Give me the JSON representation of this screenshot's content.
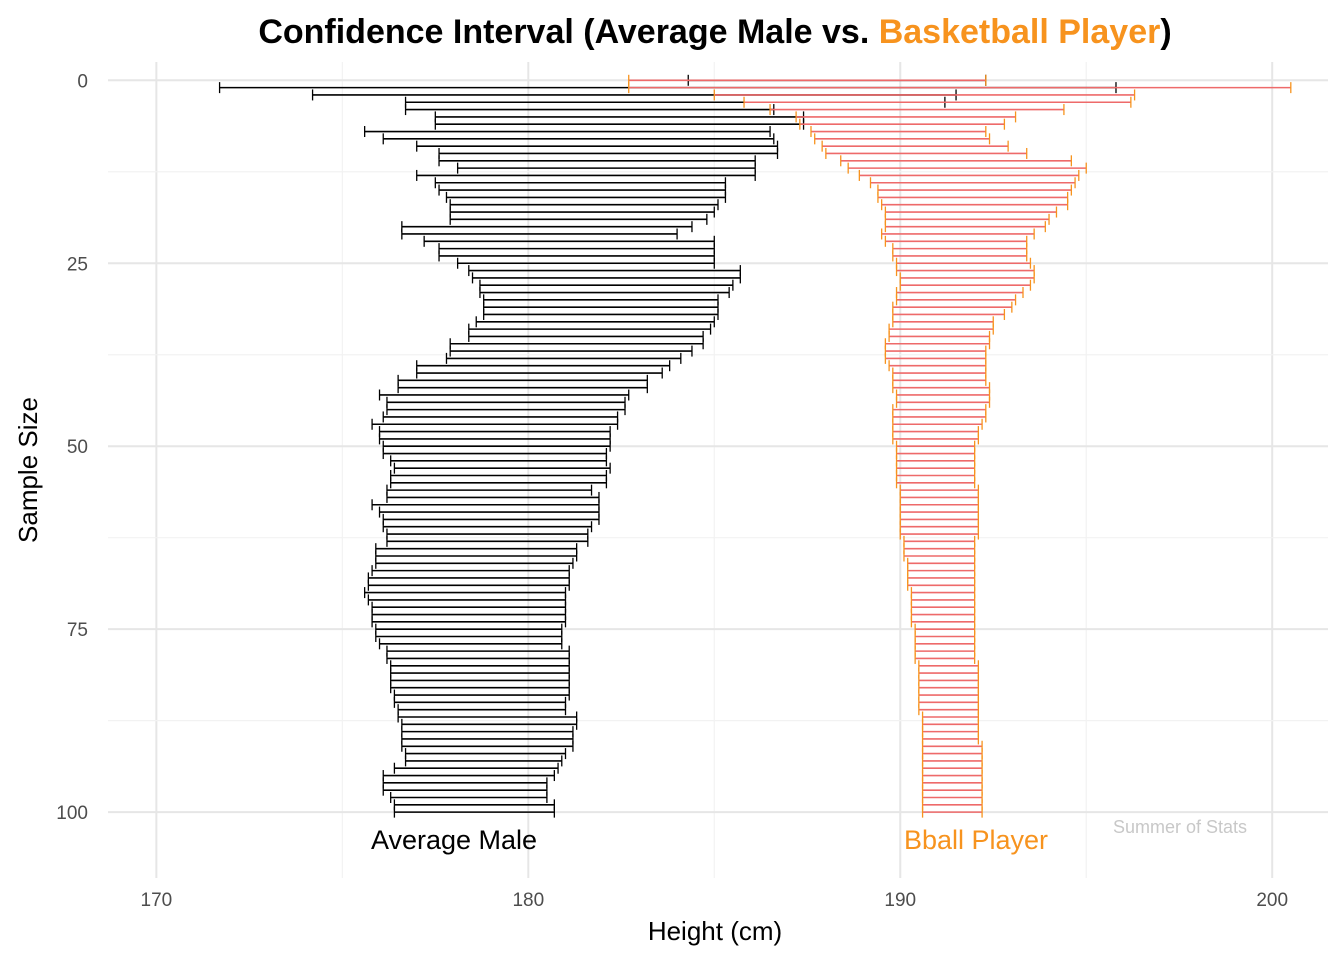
{
  "chart_data": {
    "type": "errorbar",
    "title_parts": [
      {
        "text": "Confidence Interval (Average Male vs. ",
        "color": "#000000"
      },
      {
        "text": "Basketball Player",
        "color": "#F7931E"
      },
      {
        "text": ")",
        "color": "#000000"
      }
    ],
    "xlabel": "Height (cm)",
    "ylabel": "Sample Size",
    "xlim": [
      168.7,
      201.5
    ],
    "ylim": [
      -2.5,
      109
    ],
    "y_reversed": true,
    "xticks": [
      170,
      180,
      190,
      200
    ],
    "yticks": [
      0,
      25,
      50,
      75,
      100
    ],
    "grid": true,
    "annotations": {
      "male_label": "Average Male",
      "bball_label": "Bball Player",
      "watermark": "Summer of Stats"
    },
    "colors": {
      "male_bar": "#000000",
      "bball_bar": "#EE6A6A",
      "bball_cap": "#F7931E",
      "bball_text": "#F7931E",
      "grid_major": "#e6e6e6",
      "grid_minor": "#f2f2f2",
      "watermark": "#c8c8c8"
    },
    "series": [
      {
        "name": "Average Male",
        "lower": [
          184.3,
          171.7,
          174.2,
          176.7,
          176.7,
          177.5,
          177.5,
          175.6,
          176.1,
          177.0,
          177.6,
          177.6,
          178.1,
          177.0,
          177.5,
          177.6,
          177.8,
          177.9,
          177.9,
          177.9,
          176.6,
          176.6,
          177.2,
          177.6,
          177.6,
          178.1,
          178.4,
          178.5,
          178.7,
          178.7,
          178.8,
          178.8,
          178.8,
          178.6,
          178.4,
          178.4,
          177.9,
          177.9,
          177.8,
          177.0,
          177.0,
          176.5,
          176.5,
          176.0,
          176.2,
          176.2,
          176.1,
          175.8,
          176.0,
          176.0,
          176.1,
          176.1,
          176.3,
          176.4,
          176.3,
          176.3,
          176.2,
          176.2,
          175.8,
          176.0,
          176.1,
          176.1,
          176.2,
          176.2,
          175.9,
          175.9,
          175.9,
          175.8,
          175.7,
          175.7,
          175.6,
          175.7,
          175.8,
          175.8,
          175.8,
          175.9,
          175.9,
          176.0,
          176.2,
          176.2,
          176.3,
          176.3,
          176.3,
          176.3,
          176.4,
          176.4,
          176.5,
          176.5,
          176.6,
          176.6,
          176.6,
          176.6,
          176.7,
          176.7,
          176.4,
          176.1,
          176.1,
          176.1,
          176.3,
          176.4,
          176.4
        ],
        "upper": [
          192.3,
          195.8,
          191.5,
          191.2,
          186.6,
          187.4,
          187.4,
          186.5,
          186.6,
          186.7,
          186.7,
          186.1,
          186.1,
          186.1,
          185.3,
          185.3,
          185.3,
          185.1,
          185.0,
          184.8,
          184.4,
          184.0,
          185.0,
          185.0,
          185.0,
          185.0,
          185.7,
          185.7,
          185.5,
          185.4,
          185.1,
          185.1,
          185.1,
          185.0,
          184.9,
          184.7,
          184.7,
          184.4,
          184.1,
          183.8,
          183.6,
          183.2,
          183.2,
          182.7,
          182.6,
          182.6,
          182.4,
          182.4,
          182.2,
          182.2,
          182.2,
          182.1,
          182.1,
          182.2,
          182.1,
          182.1,
          181.7,
          181.9,
          181.9,
          181.9,
          181.9,
          181.7,
          181.6,
          181.6,
          181.3,
          181.3,
          181.2,
          181.1,
          181.1,
          181.1,
          181.0,
          181.0,
          181.0,
          181.0,
          181.0,
          180.9,
          180.9,
          180.9,
          181.1,
          181.1,
          181.1,
          181.1,
          181.1,
          181.1,
          181.1,
          181.0,
          181.0,
          181.3,
          181.3,
          181.2,
          181.2,
          181.2,
          181.0,
          180.9,
          180.8,
          180.7,
          180.5,
          180.5,
          180.5,
          180.7,
          180.7
        ]
      },
      {
        "name": "Bball Player",
        "lower": [
          182.7,
          182.7,
          185.0,
          185.8,
          186.5,
          187.2,
          187.3,
          187.6,
          187.7,
          187.9,
          188.0,
          188.4,
          188.6,
          188.9,
          189.2,
          189.4,
          189.4,
          189.5,
          189.6,
          189.6,
          189.6,
          189.5,
          189.6,
          189.8,
          189.8,
          189.9,
          189.9,
          190.0,
          190.0,
          189.9,
          189.9,
          189.8,
          189.8,
          189.8,
          189.7,
          189.7,
          189.6,
          189.6,
          189.6,
          189.7,
          189.8,
          189.8,
          189.8,
          189.9,
          189.9,
          189.8,
          189.8,
          189.8,
          189.8,
          189.8,
          189.9,
          189.9,
          189.9,
          189.9,
          189.9,
          189.9,
          190.0,
          190.0,
          190.0,
          190.0,
          190.0,
          190.0,
          190.0,
          190.1,
          190.1,
          190.1,
          190.2,
          190.2,
          190.2,
          190.2,
          190.3,
          190.3,
          190.3,
          190.3,
          190.3,
          190.4,
          190.4,
          190.4,
          190.4,
          190.4,
          190.5,
          190.5,
          190.5,
          190.5,
          190.5,
          190.5,
          190.5,
          190.6,
          190.6,
          190.6,
          190.6,
          190.6,
          190.6,
          190.6,
          190.6,
          190.6,
          190.6,
          190.6,
          190.6,
          190.6,
          190.6
        ],
        "upper": [
          192.3,
          200.5,
          196.3,
          196.2,
          194.4,
          193.1,
          192.8,
          192.3,
          192.4,
          192.9,
          193.4,
          194.6,
          195.0,
          194.8,
          194.7,
          194.6,
          194.5,
          194.5,
          194.2,
          194.0,
          193.9,
          193.6,
          193.4,
          193.4,
          193.4,
          193.5,
          193.6,
          193.6,
          193.5,
          193.3,
          193.1,
          193.0,
          192.8,
          192.5,
          192.5,
          192.4,
          192.4,
          192.3,
          192.3,
          192.3,
          192.3,
          192.3,
          192.4,
          192.4,
          192.4,
          192.3,
          192.3,
          192.2,
          192.1,
          192.1,
          192.0,
          192.0,
          192.0,
          192.0,
          192.0,
          192.0,
          192.1,
          192.1,
          192.1,
          192.1,
          192.1,
          192.1,
          192.1,
          192.0,
          192.0,
          192.0,
          192.0,
          192.0,
          192.0,
          192.0,
          192.0,
          192.0,
          192.0,
          192.0,
          192.0,
          192.0,
          192.0,
          192.0,
          192.0,
          192.0,
          192.1,
          192.1,
          192.1,
          192.1,
          192.1,
          192.1,
          192.1,
          192.1,
          192.1,
          192.1,
          192.1,
          192.2,
          192.2,
          192.2,
          192.2,
          192.2,
          192.2,
          192.2,
          192.2,
          192.2,
          192.2
        ]
      }
    ]
  }
}
